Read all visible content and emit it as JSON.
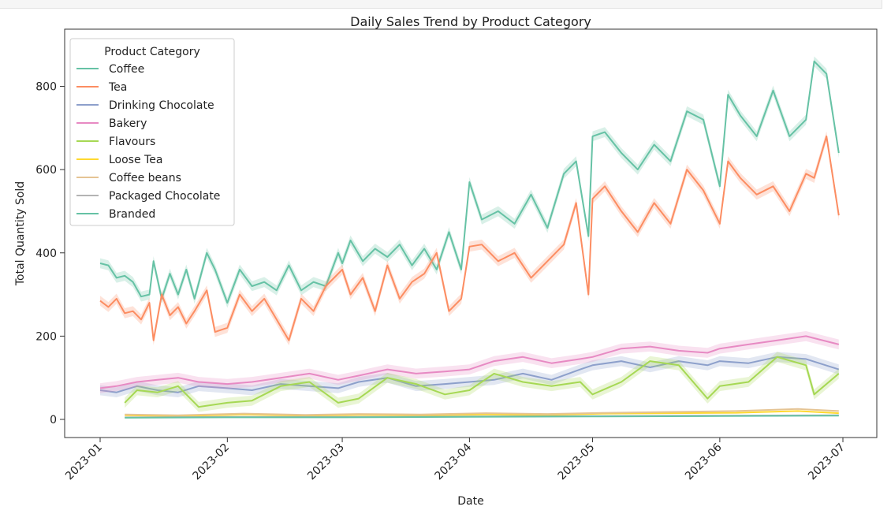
{
  "chart_data": {
    "type": "line",
    "title": "Daily Sales Trend by Product Category",
    "xlabel": "Date",
    "ylabel": "Total Quantity Sold",
    "x_axis": {
      "min": "2023-01-01",
      "max": "2023-07-01",
      "ticks": [
        "2023-01-01",
        "2023-02-01",
        "2023-03-01",
        "2023-04-01",
        "2023-05-01",
        "2023-06-01",
        "2023-07-01"
      ],
      "tick_labels": [
        "2023-01",
        "2023-02",
        "2023-03",
        "2023-04",
        "2023-05",
        "2023-06",
        "2023-07"
      ]
    },
    "y_axis": {
      "ylim": [
        -40,
        900
      ],
      "ticks": [
        0,
        200,
        400,
        600,
        800
      ],
      "tick_labels": [
        "0",
        "200",
        "400",
        "600",
        "800"
      ]
    },
    "grid": false,
    "legend": {
      "title": "Product Category",
      "placement": "top-left"
    },
    "series": [
      {
        "name": "Coffee",
        "color": "#66c2a5",
        "band": true,
        "points": [
          [
            "2023-01-01",
            375
          ],
          [
            "2023-01-03",
            370
          ],
          [
            "2023-01-05",
            340
          ],
          [
            "2023-01-07",
            345
          ],
          [
            "2023-01-09",
            330
          ],
          [
            "2023-01-11",
            295
          ],
          [
            "2023-01-13",
            300
          ],
          [
            "2023-01-14",
            380
          ],
          [
            "2023-01-16",
            290
          ],
          [
            "2023-01-18",
            350
          ],
          [
            "2023-01-20",
            300
          ],
          [
            "2023-01-22",
            360
          ],
          [
            "2023-01-24",
            290
          ],
          [
            "2023-01-27",
            400
          ],
          [
            "2023-01-29",
            360
          ],
          [
            "2023-02-01",
            280
          ],
          [
            "2023-02-04",
            360
          ],
          [
            "2023-02-07",
            320
          ],
          [
            "2023-02-10",
            330
          ],
          [
            "2023-02-13",
            310
          ],
          [
            "2023-02-16",
            370
          ],
          [
            "2023-02-19",
            310
          ],
          [
            "2023-02-22",
            330
          ],
          [
            "2023-02-25",
            320
          ],
          [
            "2023-02-28",
            400
          ],
          [
            "2023-03-01",
            375
          ],
          [
            "2023-03-03",
            430
          ],
          [
            "2023-03-06",
            380
          ],
          [
            "2023-03-09",
            410
          ],
          [
            "2023-03-12",
            390
          ],
          [
            "2023-03-15",
            420
          ],
          [
            "2023-03-18",
            370
          ],
          [
            "2023-03-21",
            410
          ],
          [
            "2023-03-24",
            360
          ],
          [
            "2023-03-27",
            450
          ],
          [
            "2023-03-30",
            360
          ],
          [
            "2023-04-01",
            570
          ],
          [
            "2023-04-04",
            480
          ],
          [
            "2023-04-08",
            500
          ],
          [
            "2023-04-12",
            470
          ],
          [
            "2023-04-16",
            540
          ],
          [
            "2023-04-20",
            460
          ],
          [
            "2023-04-24",
            590
          ],
          [
            "2023-04-27",
            620
          ],
          [
            "2023-04-30",
            440
          ],
          [
            "2023-05-01",
            680
          ],
          [
            "2023-05-04",
            690
          ],
          [
            "2023-05-08",
            640
          ],
          [
            "2023-05-12",
            600
          ],
          [
            "2023-05-16",
            660
          ],
          [
            "2023-05-20",
            620
          ],
          [
            "2023-05-24",
            740
          ],
          [
            "2023-05-28",
            720
          ],
          [
            "2023-06-01",
            560
          ],
          [
            "2023-06-03",
            780
          ],
          [
            "2023-06-06",
            730
          ],
          [
            "2023-06-10",
            680
          ],
          [
            "2023-06-14",
            790
          ],
          [
            "2023-06-18",
            680
          ],
          [
            "2023-06-22",
            720
          ],
          [
            "2023-06-24",
            860
          ],
          [
            "2023-06-27",
            830
          ],
          [
            "2023-06-30",
            640
          ]
        ]
      },
      {
        "name": "Tea",
        "color": "#fc8d62",
        "band": true,
        "points": [
          [
            "2023-01-01",
            285
          ],
          [
            "2023-01-03",
            270
          ],
          [
            "2023-01-05",
            290
          ],
          [
            "2023-01-07",
            255
          ],
          [
            "2023-01-09",
            260
          ],
          [
            "2023-01-11",
            240
          ],
          [
            "2023-01-13",
            280
          ],
          [
            "2023-01-14",
            190
          ],
          [
            "2023-01-16",
            300
          ],
          [
            "2023-01-18",
            250
          ],
          [
            "2023-01-20",
            270
          ],
          [
            "2023-01-22",
            230
          ],
          [
            "2023-01-24",
            260
          ],
          [
            "2023-01-27",
            310
          ],
          [
            "2023-01-29",
            210
          ],
          [
            "2023-02-01",
            220
          ],
          [
            "2023-02-04",
            300
          ],
          [
            "2023-02-07",
            260
          ],
          [
            "2023-02-10",
            290
          ],
          [
            "2023-02-13",
            240
          ],
          [
            "2023-02-16",
            190
          ],
          [
            "2023-02-19",
            290
          ],
          [
            "2023-02-22",
            260
          ],
          [
            "2023-02-25",
            320
          ],
          [
            "2023-02-28",
            350
          ],
          [
            "2023-03-01",
            360
          ],
          [
            "2023-03-03",
            300
          ],
          [
            "2023-03-06",
            340
          ],
          [
            "2023-03-09",
            260
          ],
          [
            "2023-03-12",
            370
          ],
          [
            "2023-03-15",
            290
          ],
          [
            "2023-03-18",
            330
          ],
          [
            "2023-03-21",
            350
          ],
          [
            "2023-03-24",
            400
          ],
          [
            "2023-03-27",
            260
          ],
          [
            "2023-03-30",
            290
          ],
          [
            "2023-04-01",
            415
          ],
          [
            "2023-04-04",
            420
          ],
          [
            "2023-04-08",
            380
          ],
          [
            "2023-04-12",
            400
          ],
          [
            "2023-04-16",
            340
          ],
          [
            "2023-04-20",
            380
          ],
          [
            "2023-04-24",
            420
          ],
          [
            "2023-04-27",
            520
          ],
          [
            "2023-04-30",
            300
          ],
          [
            "2023-05-01",
            530
          ],
          [
            "2023-05-04",
            560
          ],
          [
            "2023-05-08",
            500
          ],
          [
            "2023-05-12",
            450
          ],
          [
            "2023-05-16",
            520
          ],
          [
            "2023-05-20",
            470
          ],
          [
            "2023-05-24",
            600
          ],
          [
            "2023-05-28",
            550
          ],
          [
            "2023-06-01",
            470
          ],
          [
            "2023-06-03",
            620
          ],
          [
            "2023-06-06",
            580
          ],
          [
            "2023-06-10",
            540
          ],
          [
            "2023-06-14",
            560
          ],
          [
            "2023-06-18",
            500
          ],
          [
            "2023-06-22",
            590
          ],
          [
            "2023-06-24",
            580
          ],
          [
            "2023-06-27",
            680
          ],
          [
            "2023-06-30",
            490
          ]
        ]
      },
      {
        "name": "Drinking Chocolate",
        "color": "#8da0cb",
        "band": true,
        "points": [
          [
            "2023-01-01",
            70
          ],
          [
            "2023-01-05",
            65
          ],
          [
            "2023-01-10",
            80
          ],
          [
            "2023-01-15",
            70
          ],
          [
            "2023-01-20",
            65
          ],
          [
            "2023-01-25",
            80
          ],
          [
            "2023-02-01",
            75
          ],
          [
            "2023-02-07",
            70
          ],
          [
            "2023-02-14",
            85
          ],
          [
            "2023-02-21",
            80
          ],
          [
            "2023-02-28",
            75
          ],
          [
            "2023-03-05",
            90
          ],
          [
            "2023-03-12",
            100
          ],
          [
            "2023-03-19",
            80
          ],
          [
            "2023-03-26",
            85
          ],
          [
            "2023-04-01",
            90
          ],
          [
            "2023-04-07",
            95
          ],
          [
            "2023-04-14",
            110
          ],
          [
            "2023-04-21",
            95
          ],
          [
            "2023-04-28",
            120
          ],
          [
            "2023-05-01",
            130
          ],
          [
            "2023-05-08",
            140
          ],
          [
            "2023-05-15",
            125
          ],
          [
            "2023-05-22",
            140
          ],
          [
            "2023-05-29",
            130
          ],
          [
            "2023-06-01",
            140
          ],
          [
            "2023-06-08",
            135
          ],
          [
            "2023-06-15",
            150
          ],
          [
            "2023-06-22",
            145
          ],
          [
            "2023-06-30",
            120
          ]
        ]
      },
      {
        "name": "Bakery",
        "color": "#e78ac3",
        "band": true,
        "points": [
          [
            "2023-01-01",
            75
          ],
          [
            "2023-01-05",
            80
          ],
          [
            "2023-01-10",
            90
          ],
          [
            "2023-01-15",
            95
          ],
          [
            "2023-01-20",
            100
          ],
          [
            "2023-01-25",
            90
          ],
          [
            "2023-02-01",
            85
          ],
          [
            "2023-02-07",
            90
          ],
          [
            "2023-02-14",
            100
          ],
          [
            "2023-02-21",
            110
          ],
          [
            "2023-02-28",
            95
          ],
          [
            "2023-03-05",
            105
          ],
          [
            "2023-03-12",
            120
          ],
          [
            "2023-03-19",
            110
          ],
          [
            "2023-03-26",
            115
          ],
          [
            "2023-04-01",
            120
          ],
          [
            "2023-04-07",
            140
          ],
          [
            "2023-04-14",
            150
          ],
          [
            "2023-04-21",
            135
          ],
          [
            "2023-04-28",
            145
          ],
          [
            "2023-05-01",
            150
          ],
          [
            "2023-05-08",
            170
          ],
          [
            "2023-05-15",
            175
          ],
          [
            "2023-05-22",
            165
          ],
          [
            "2023-05-29",
            160
          ],
          [
            "2023-06-01",
            170
          ],
          [
            "2023-06-08",
            180
          ],
          [
            "2023-06-15",
            190
          ],
          [
            "2023-06-22",
            200
          ],
          [
            "2023-06-30",
            180
          ]
        ]
      },
      {
        "name": "Flavours",
        "color": "#a6d854",
        "band": true,
        "points": [
          [
            "2023-01-07",
            40
          ],
          [
            "2023-01-10",
            70
          ],
          [
            "2023-01-15",
            65
          ],
          [
            "2023-01-20",
            80
          ],
          [
            "2023-01-25",
            30
          ],
          [
            "2023-02-01",
            40
          ],
          [
            "2023-02-07",
            45
          ],
          [
            "2023-02-14",
            80
          ],
          [
            "2023-02-21",
            90
          ],
          [
            "2023-02-28",
            40
          ],
          [
            "2023-03-05",
            50
          ],
          [
            "2023-03-12",
            100
          ],
          [
            "2023-03-19",
            85
          ],
          [
            "2023-03-26",
            60
          ],
          [
            "2023-04-01",
            70
          ],
          [
            "2023-04-07",
            110
          ],
          [
            "2023-04-14",
            90
          ],
          [
            "2023-04-21",
            80
          ],
          [
            "2023-04-28",
            90
          ],
          [
            "2023-05-01",
            60
          ],
          [
            "2023-05-08",
            90
          ],
          [
            "2023-05-15",
            140
          ],
          [
            "2023-05-22",
            130
          ],
          [
            "2023-05-29",
            50
          ],
          [
            "2023-06-01",
            80
          ],
          [
            "2023-06-08",
            90
          ],
          [
            "2023-06-15",
            150
          ],
          [
            "2023-06-22",
            130
          ],
          [
            "2023-06-24",
            60
          ],
          [
            "2023-06-30",
            110
          ]
        ]
      },
      {
        "name": "Loose Tea",
        "color": "#ffd92f",
        "band": false,
        "points": [
          [
            "2023-01-07",
            10
          ],
          [
            "2023-01-20",
            8
          ],
          [
            "2023-02-05",
            12
          ],
          [
            "2023-02-20",
            9
          ],
          [
            "2023-03-05",
            11
          ],
          [
            "2023-03-20",
            10
          ],
          [
            "2023-04-05",
            12
          ],
          [
            "2023-04-20",
            11
          ],
          [
            "2023-05-05",
            14
          ],
          [
            "2023-05-20",
            15
          ],
          [
            "2023-06-05",
            16
          ],
          [
            "2023-06-20",
            20
          ],
          [
            "2023-06-30",
            15
          ]
        ]
      },
      {
        "name": "Coffee beans",
        "color": "#e5c494",
        "band": false,
        "points": [
          [
            "2023-01-07",
            12
          ],
          [
            "2023-01-20",
            10
          ],
          [
            "2023-02-05",
            14
          ],
          [
            "2023-02-20",
            11
          ],
          [
            "2023-03-05",
            13
          ],
          [
            "2023-03-20",
            12
          ],
          [
            "2023-04-05",
            15
          ],
          [
            "2023-04-20",
            13
          ],
          [
            "2023-05-05",
            16
          ],
          [
            "2023-05-20",
            18
          ],
          [
            "2023-06-05",
            20
          ],
          [
            "2023-06-20",
            25
          ],
          [
            "2023-06-30",
            20
          ]
        ]
      },
      {
        "name": "Packaged Chocolate",
        "color": "#b3b3b3",
        "band": false,
        "points": [
          [
            "2023-01-07",
            5
          ],
          [
            "2023-02-01",
            6
          ],
          [
            "2023-03-01",
            6
          ],
          [
            "2023-04-01",
            7
          ],
          [
            "2023-05-01",
            8
          ],
          [
            "2023-06-01",
            9
          ],
          [
            "2023-06-30",
            10
          ]
        ]
      },
      {
        "name": "Branded",
        "color": "#66c2a5",
        "band": false,
        "points": [
          [
            "2023-01-07",
            4
          ],
          [
            "2023-02-01",
            5
          ],
          [
            "2023-03-01",
            5
          ],
          [
            "2023-04-01",
            6
          ],
          [
            "2023-05-01",
            7
          ],
          [
            "2023-06-01",
            8
          ],
          [
            "2023-06-30",
            9
          ]
        ]
      }
    ]
  }
}
